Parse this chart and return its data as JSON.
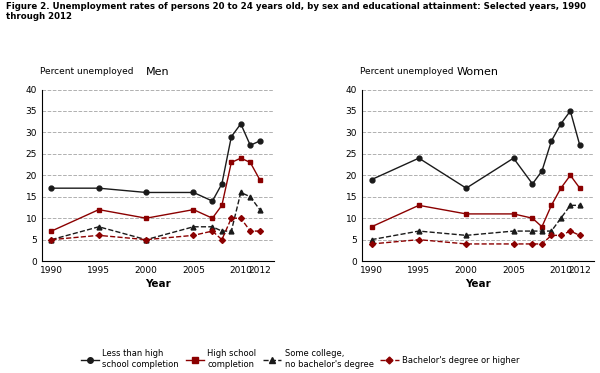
{
  "title": "Figure 2. Unemployment rates of persons 20 to 24 years old, by sex and educational attainment: Selected years, 1990\nthrough 2012",
  "years": [
    1990,
    1995,
    2000,
    2005,
    2007,
    2008,
    2009,
    2010,
    2011,
    2012
  ],
  "men": {
    "less_than_hs": [
      17,
      17,
      16,
      16,
      14,
      18,
      29,
      32,
      27,
      28
    ],
    "hs_completion": [
      7,
      12,
      10,
      12,
      10,
      13,
      23,
      24,
      23,
      19
    ],
    "some_college": [
      5,
      8,
      5,
      8,
      8,
      7,
      7,
      16,
      15,
      12
    ],
    "bachelors": [
      5,
      6,
      5,
      6,
      7,
      5,
      10,
      10,
      7,
      7
    ]
  },
  "women": {
    "less_than_hs": [
      19,
      24,
      17,
      24,
      18,
      21,
      28,
      32,
      35,
      27
    ],
    "hs_completion": [
      8,
      13,
      11,
      11,
      10,
      8,
      13,
      17,
      20,
      17
    ],
    "some_college": [
      5,
      7,
      6,
      7,
      7,
      7,
      7,
      10,
      13,
      13
    ],
    "bachelors": [
      4,
      5,
      4,
      4,
      4,
      4,
      6,
      6,
      7,
      6
    ]
  },
  "ylim": [
    0,
    40
  ],
  "yticks": [
    0,
    5,
    10,
    15,
    20,
    25,
    30,
    35,
    40
  ],
  "ylabel": "Percent unemployed",
  "xlabel": "Year",
  "panel_labels": [
    "Men",
    "Women"
  ],
  "color_less_hs": "#1a1a1a",
  "color_hs": "#8b0000",
  "color_some_college": "#1a1a1a",
  "color_bachelors": "#8b0000",
  "background_color": "#ffffff",
  "grid_color": "#b0b0b0"
}
